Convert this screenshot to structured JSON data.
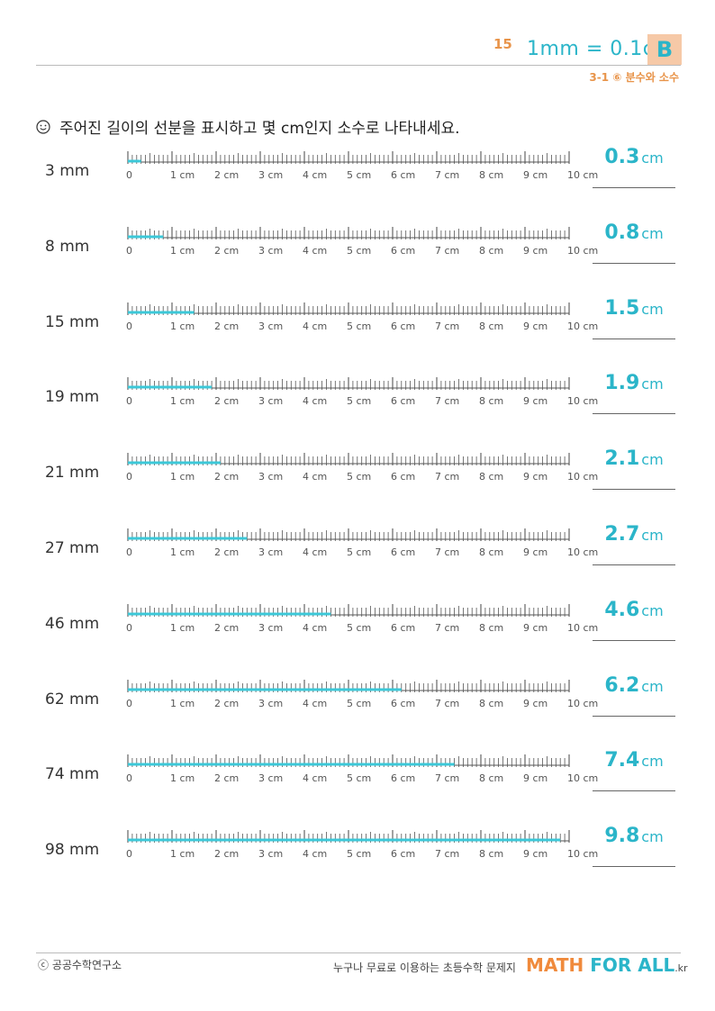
{
  "header": {
    "page_number": "15",
    "title": "1mm = 0.1cm",
    "level": "B",
    "unit": "3-1 ⑥ 분수와 소수"
  },
  "instruction": "주어진 길이의 선분을 표시하고 몇 cm인지 소수로 나타내세요.",
  "ruler": {
    "tick_labels": [
      "0",
      "1 cm",
      "2 cm",
      "3 cm",
      "4 cm",
      "5 cm",
      "6 cm",
      "7 cm",
      "8 cm",
      "9 cm",
      "10 cm"
    ],
    "max_mm": 100
  },
  "problems": [
    {
      "length_label": "3 mm",
      "mm": 3,
      "answer": "0.3",
      "unit": "cm"
    },
    {
      "length_label": "8 mm",
      "mm": 8,
      "answer": "0.8",
      "unit": "cm"
    },
    {
      "length_label": "15 mm",
      "mm": 15,
      "answer": "1.5",
      "unit": "cm"
    },
    {
      "length_label": "19 mm",
      "mm": 19,
      "answer": "1.9",
      "unit": "cm"
    },
    {
      "length_label": "21 mm",
      "mm": 21,
      "answer": "2.1",
      "unit": "cm"
    },
    {
      "length_label": "27 mm",
      "mm": 27,
      "answer": "2.7",
      "unit": "cm"
    },
    {
      "length_label": "46 mm",
      "mm": 46,
      "answer": "4.6",
      "unit": "cm"
    },
    {
      "length_label": "62 mm",
      "mm": 62,
      "answer": "6.2",
      "unit": "cm"
    },
    {
      "length_label": "74 mm",
      "mm": 74,
      "answer": "7.4",
      "unit": "cm"
    },
    {
      "length_label": "98 mm",
      "mm": 98,
      "answer": "9.8",
      "unit": "cm"
    }
  ],
  "footer": {
    "copyright": "ⓒ 공공수학연구소",
    "tagline": "누구나 무료로 이용하는 초등수학 문제지",
    "brand_math": "MATH",
    "brand_forall": "FOR ALL",
    "brand_kr": ".kr"
  },
  "colors": {
    "accent": "#2bb5c9",
    "orange": "#e8944a",
    "badge": "#f6c9a7",
    "highlight": "#3cc8d8"
  },
  "icons": {
    "instruction": "smile-icon"
  }
}
